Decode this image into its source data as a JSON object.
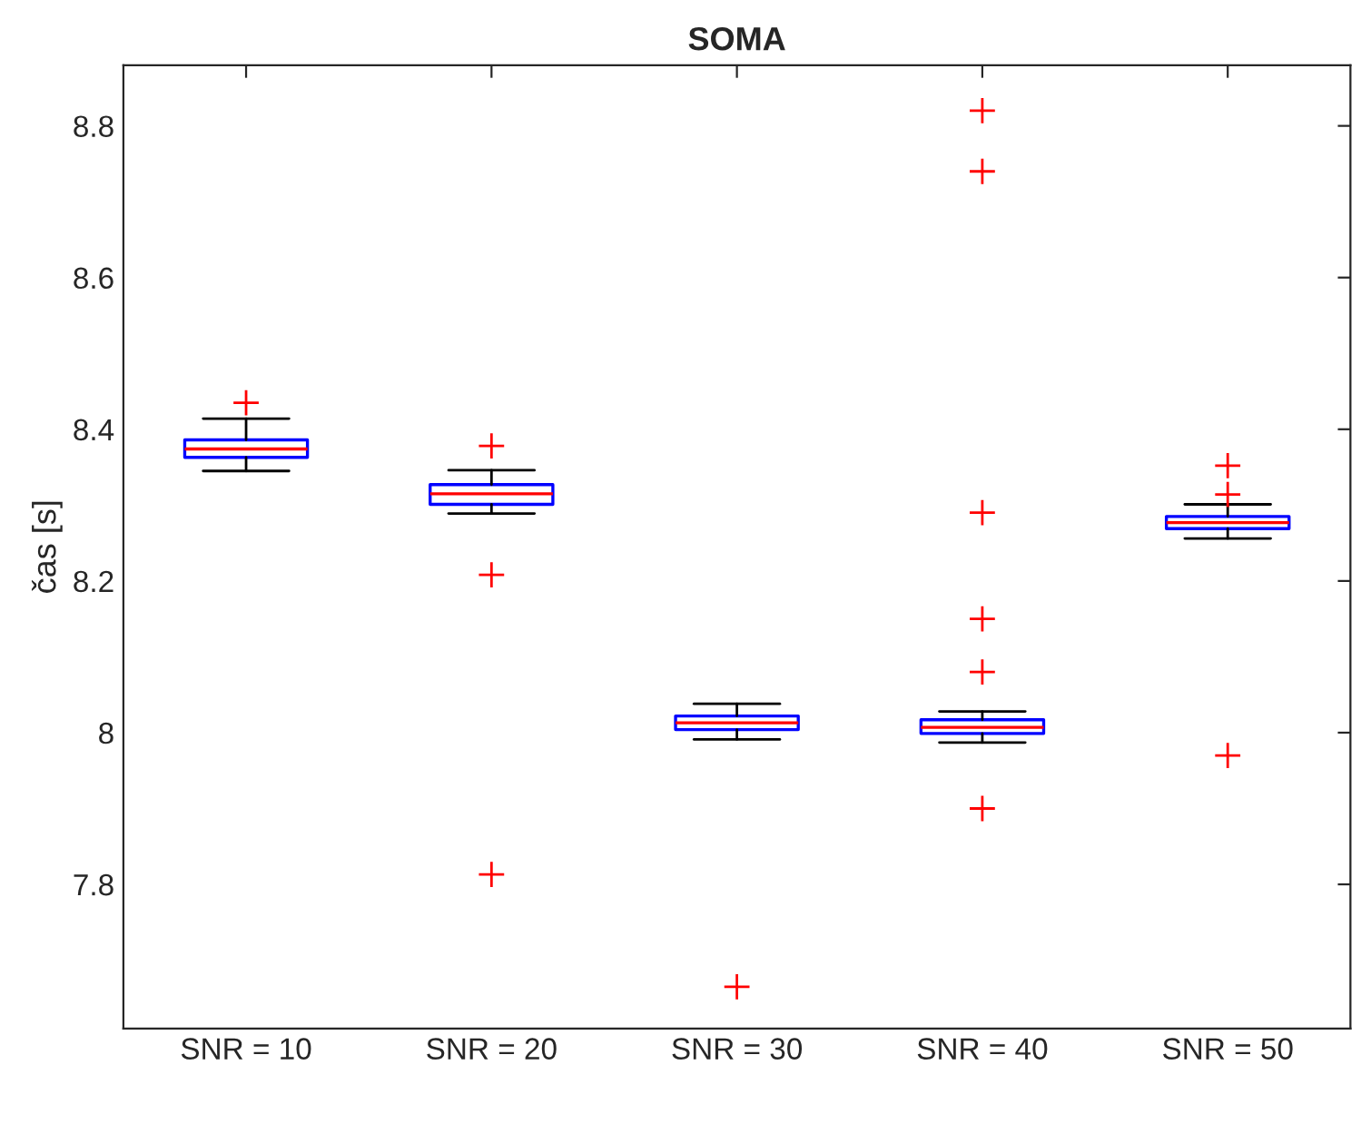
{
  "chart_data": {
    "type": "box",
    "title": "SOMA",
    "ylabel": "čas [s]",
    "categories": [
      "SNR = 10",
      "SNR = 20",
      "SNR = 30",
      "SNR = 40",
      "SNR = 50"
    ],
    "ylim": [
      7.61,
      8.88
    ],
    "yticks": [
      7.8,
      8,
      8.2,
      8.4,
      8.6,
      8.8
    ],
    "grid": false,
    "marker": "cross",
    "series": [
      {
        "color": "#0000ff",
        "boxes": [
          {
            "low": 8.345,
            "q1": 8.363,
            "median": 8.374,
            "q3": 8.386,
            "high": 8.414,
            "outliers": [
              8.435
            ]
          },
          {
            "low": 8.289,
            "q1": 8.301,
            "median": 8.315,
            "q3": 8.327,
            "high": 8.346,
            "outliers": [
              8.378,
              8.208,
              7.813
            ]
          },
          {
            "low": 7.991,
            "q1": 8.004,
            "median": 8.013,
            "q3": 8.022,
            "high": 8.038,
            "outliers": [
              7.665
            ]
          },
          {
            "low": 7.987,
            "q1": 7.999,
            "median": 8.007,
            "q3": 8.017,
            "high": 8.028,
            "outliers": [
              8.82,
              8.74,
              8.29,
              8.15,
              8.08,
              7.9
            ]
          },
          {
            "low": 8.256,
            "q1": 8.269,
            "median": 8.277,
            "q3": 8.285,
            "high": 8.301,
            "outliers": [
              8.352,
              8.314,
              7.97
            ]
          }
        ]
      }
    ]
  }
}
